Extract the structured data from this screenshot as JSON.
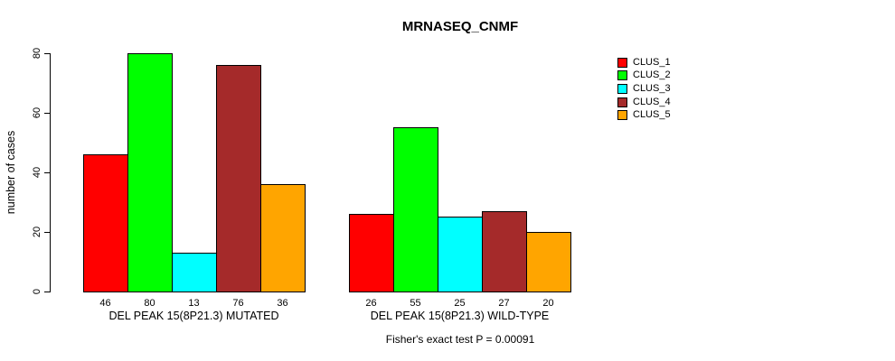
{
  "chart_data": {
    "type": "bar",
    "title": "MRNASEQ_CNMF",
    "xlabel": "",
    "ylabel": "number of cases",
    "ylim": [
      0,
      80
    ],
    "yticks": [
      0,
      20,
      40,
      60,
      80
    ],
    "grid": false,
    "legend_position": "right",
    "categories": [
      "DEL PEAK 15(8P21.3) MUTATED",
      "DEL PEAK 15(8P21.3) WILD-TYPE"
    ],
    "series": [
      {
        "name": "CLUS_1",
        "color": "#FF0000",
        "values": [
          46,
          26
        ]
      },
      {
        "name": "CLUS_2",
        "color": "#00FF00",
        "values": [
          80,
          55
        ]
      },
      {
        "name": "CLUS_3",
        "color": "#00FFFF",
        "values": [
          13,
          25
        ]
      },
      {
        "name": "CLUS_4",
        "color": "#A52A2A",
        "values": [
          76,
          27
        ]
      },
      {
        "name": "CLUS_5",
        "color": "#FFA500",
        "values": [
          36,
          20
        ]
      }
    ],
    "bar_value_labels": true,
    "annotation": "Fisher's exact test P = 0.00091"
  }
}
